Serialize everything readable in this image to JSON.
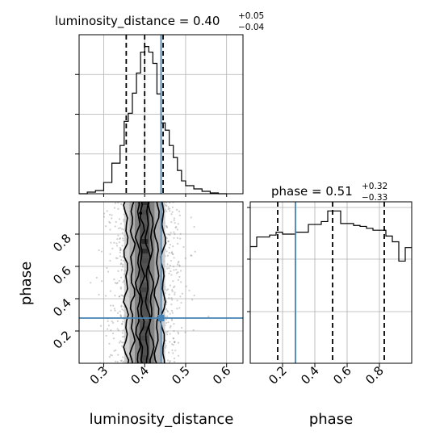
{
  "chart_data": {
    "type": "corner",
    "parameters": [
      "luminosity_distance",
      "phase"
    ],
    "ranges": {
      "luminosity_distance": [
        0.24,
        0.64
      ],
      "phase": [
        0.0,
        1.0
      ]
    },
    "grid": true,
    "truths": {
      "luminosity_distance": 0.44,
      "phase": 0.28
    },
    "colors": {
      "truth": "#4682b4",
      "histogram": "#000000",
      "quantile": "#000000",
      "density": "#000000"
    },
    "marginals": [
      {
        "parameter": "luminosity_distance",
        "title": {
          "prefix": "luminosity_distance = ",
          "value": "0.40",
          "plus": "+0.05",
          "minus": "−0.04"
        },
        "quantiles": [
          0.355,
          0.4,
          0.445
        ],
        "bin_edges": [
          0.24,
          0.26,
          0.28,
          0.3,
          0.32,
          0.34,
          0.35,
          0.36,
          0.37,
          0.38,
          0.39,
          0.4,
          0.41,
          0.42,
          0.43,
          0.44,
          0.45,
          0.46,
          0.47,
          0.48,
          0.49,
          0.5,
          0.52,
          0.54,
          0.56,
          0.58,
          0.6
        ],
        "counts": [
          0,
          2,
          4,
          14,
          38,
          60,
          90,
          100,
          125,
          150,
          176,
          183,
          176,
          162,
          124,
          88,
          79,
          60,
          45,
          29,
          16,
          10,
          6,
          3,
          1,
          0
        ]
      },
      {
        "parameter": "phase",
        "title": {
          "prefix": "phase = ",
          "value": "0.51",
          "plus": "+0.32",
          "minus": "−0.33"
        },
        "quantiles": [
          0.17,
          0.51,
          0.83
        ],
        "bin_edges": [
          0.0,
          0.04,
          0.08,
          0.12,
          0.16,
          0.2,
          0.24,
          0.28,
          0.32,
          0.36,
          0.4,
          0.44,
          0.48,
          0.52,
          0.56,
          0.6,
          0.64,
          0.68,
          0.72,
          0.76,
          0.8,
          0.84,
          0.88,
          0.92,
          0.96,
          1.0
        ],
        "counts": [
          121,
          131,
          131,
          133,
          136,
          134,
          134,
          136,
          136,
          144,
          144,
          147,
          158,
          158,
          145,
          145,
          143,
          142,
          140,
          138,
          138,
          132,
          126,
          106,
          120
        ]
      }
    ],
    "joint": {
      "x": "luminosity_distance",
      "y": "phase",
      "center_x": 0.4,
      "spread_x": 0.032,
      "contour_half_widths": [
        0.045,
        0.03,
        0.016,
        0.007
      ]
    },
    "ticks": {
      "luminosity_distance": [
        "0.3",
        "0.4",
        "0.5",
        "0.6"
      ],
      "phase": [
        "0.2",
        "0.4",
        "0.6",
        "0.8"
      ]
    },
    "axis_labels": {
      "x_left": "luminosity_distance",
      "x_right": "phase",
      "y_bottom": "phase"
    }
  }
}
